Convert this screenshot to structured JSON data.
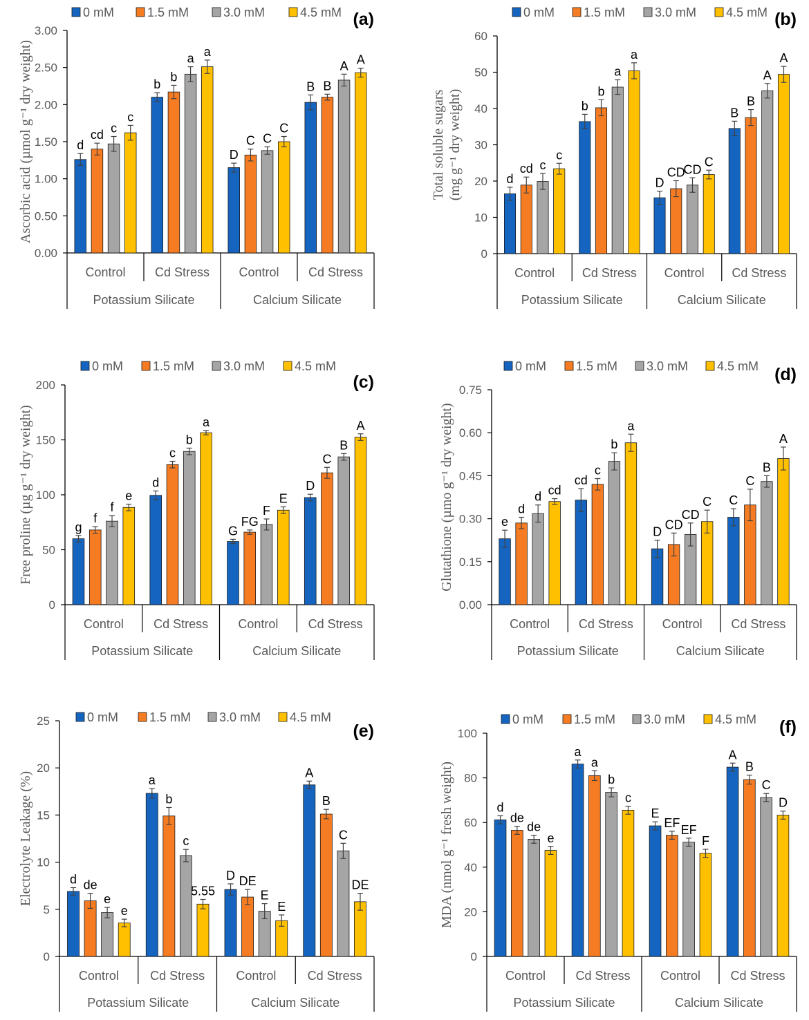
{
  "chart_data": [
    {
      "type": "bar",
      "panel_label": "(a)",
      "ylabel_lines": [
        "Ascorbic acid (µmol g⁻¹ dry weight)"
      ],
      "ylim": [
        0,
        3.0
      ],
      "ticks": [
        "0.00",
        "0.50",
        "1.00",
        "1.50",
        "2.00",
        "2.50",
        "3.00"
      ],
      "tick_values": [
        0,
        0.5,
        1,
        1.5,
        2,
        2.5,
        3
      ],
      "categories": [
        "Control",
        "Cd Stress",
        "Control",
        "Cd Stress"
      ],
      "groups": [
        "Potassium Silicate",
        "Calcium Silicate"
      ],
      "series": [
        {
          "name": "0 mM",
          "values": [
            1.26,
            2.1,
            1.15,
            2.03
          ],
          "errors": [
            0.08,
            0.06,
            0.06,
            0.1
          ],
          "letters": [
            "d",
            "b",
            "D",
            "B"
          ]
        },
        {
          "name": "1.5 mM",
          "values": [
            1.4,
            2.17,
            1.32,
            2.1
          ],
          "errors": [
            0.08,
            0.09,
            0.08,
            0.04
          ],
          "letters": [
            "cd",
            "b",
            "C",
            "B"
          ]
        },
        {
          "name": "3.0 mM",
          "values": [
            1.47,
            2.41,
            1.38,
            2.33
          ],
          "errors": [
            0.1,
            0.1,
            0.05,
            0.08
          ],
          "letters": [
            "c",
            "a",
            "C",
            "A"
          ]
        },
        {
          "name": "4.5 mM",
          "values": [
            1.62,
            2.51,
            1.5,
            2.43
          ],
          "errors": [
            0.1,
            0.09,
            0.07,
            0.06
          ],
          "letters": [
            "c",
            "a",
            "C",
            "A"
          ]
        }
      ],
      "colors": [
        "#1565C0",
        "#F57C22",
        "#A5A5A5",
        "#FFC000"
      ]
    },
    {
      "type": "bar",
      "panel_label": "(b)",
      "ylabel_lines": [
        "Total soluble sugars",
        "(mg g⁻¹ dry weight)"
      ],
      "ylim": [
        0,
        60
      ],
      "ticks": [
        "0",
        "10",
        "20",
        "30",
        "40",
        "50",
        "60"
      ],
      "tick_values": [
        0,
        10,
        20,
        30,
        40,
        50,
        60
      ],
      "categories": [
        "Control",
        "Cd Stress",
        "Control",
        "Cd Stress"
      ],
      "groups": [
        "Potassium Silicate",
        "Calcium Silicate"
      ],
      "series": [
        {
          "name": "0 mM",
          "values": [
            16.5,
            36.4,
            15.4,
            34.5
          ],
          "errors": [
            1.8,
            2.0,
            1.8,
            2.0
          ],
          "letters": [
            "d",
            "b",
            "D",
            "B"
          ]
        },
        {
          "name": "1.5 mM",
          "values": [
            18.9,
            40.2,
            17.9,
            37.5
          ],
          "errors": [
            2.2,
            2.2,
            2.2,
            2.2
          ],
          "letters": [
            "cd",
            "b",
            "CD",
            "B"
          ]
        },
        {
          "name": "3.0 mM",
          "values": [
            19.9,
            45.9,
            18.9,
            44.9
          ],
          "errors": [
            2.2,
            2.0,
            2.0,
            2.0
          ],
          "letters": [
            "c",
            "a",
            "CD",
            "A"
          ]
        },
        {
          "name": "4.5 mM",
          "values": [
            23.4,
            50.4,
            21.8,
            49.4
          ],
          "errors": [
            1.5,
            2.2,
            1.2,
            2.2
          ],
          "letters": [
            "c",
            "a",
            "C",
            "A"
          ]
        }
      ],
      "colors": [
        "#1565C0",
        "#F57C22",
        "#A5A5A5",
        "#FFC000"
      ]
    },
    {
      "type": "bar",
      "panel_label": "(c)",
      "ylabel_lines": [
        "Free proline (µg g⁻¹ dry weight)"
      ],
      "ylim": [
        0,
        200
      ],
      "ticks": [
        "0",
        "50",
        "100",
        "150",
        "200"
      ],
      "tick_values": [
        0,
        50,
        100,
        150,
        200
      ],
      "categories": [
        "Control",
        "Cd Stress",
        "Control",
        "Cd Stress"
      ],
      "groups": [
        "Potassium Silicate",
        "Calcium Silicate"
      ],
      "series": [
        {
          "name": "0 mM",
          "values": [
            60,
            99.5,
            57.5,
            97.5
          ],
          "errors": [
            3,
            4,
            2,
            3
          ],
          "letters": [
            "g",
            "d",
            "G",
            "D"
          ]
        },
        {
          "name": "1.5 mM",
          "values": [
            68,
            127.5,
            66,
            120
          ],
          "errors": [
            3,
            3,
            2,
            5
          ],
          "letters": [
            "f",
            "c",
            "FG",
            "C"
          ]
        },
        {
          "name": "3.0 mM",
          "values": [
            76,
            139.5,
            73,
            134.5
          ],
          "errors": [
            5,
            3,
            5,
            3
          ],
          "letters": [
            "f",
            "b",
            "F",
            "B"
          ]
        },
        {
          "name": "4.5 mM",
          "values": [
            88.5,
            156.5,
            86,
            152.5
          ],
          "errors": [
            3,
            2,
            3,
            3
          ],
          "letters": [
            "e",
            "a",
            "E",
            "A"
          ]
        }
      ],
      "colors": [
        "#1565C0",
        "#F57C22",
        "#A5A5A5",
        "#FFC000"
      ]
    },
    {
      "type": "bar",
      "panel_label": "(d)",
      "ylabel_lines": [
        "Glutathione (µmo g⁻¹ dry weight)"
      ],
      "ylim": [
        0,
        0.75
      ],
      "ticks": [
        "0.00",
        "0.15",
        "0.30",
        "0.45",
        "0.60",
        "0.75"
      ],
      "tick_values": [
        0,
        0.15,
        0.3,
        0.45,
        0.6,
        0.75
      ],
      "categories": [
        "Control",
        "Cd Stress",
        "Control",
        "Cd Stress"
      ],
      "groups": [
        "Potassium Silicate",
        "Calcium Silicate"
      ],
      "series": [
        {
          "name": "0 mM",
          "values": [
            0.23,
            0.365,
            0.195,
            0.305
          ],
          "errors": [
            0.03,
            0.04,
            0.03,
            0.03
          ],
          "letters": [
            "e",
            "cd",
            "D",
            "C"
          ]
        },
        {
          "name": "1.5 mM",
          "values": [
            0.285,
            0.42,
            0.21,
            0.348
          ],
          "errors": [
            0.02,
            0.02,
            0.04,
            0.055
          ],
          "letters": [
            "d",
            "c",
            "CD",
            "C"
          ]
        },
        {
          "name": "3.0 mM",
          "values": [
            0.318,
            0.5,
            0.245,
            0.43
          ],
          "errors": [
            0.03,
            0.03,
            0.04,
            0.02
          ],
          "letters": [
            "d",
            "b",
            "CD",
            "B"
          ]
        },
        {
          "name": "4.5 mM",
          "values": [
            0.36,
            0.565,
            0.29,
            0.51
          ],
          "errors": [
            0.01,
            0.03,
            0.04,
            0.04
          ],
          "letters": [
            "cd",
            "a",
            "C",
            "A"
          ]
        }
      ],
      "colors": [
        "#1565C0",
        "#F57C22",
        "#A5A5A5",
        "#FFC000"
      ]
    },
    {
      "type": "bar",
      "panel_label": "(e)",
      "ylabel_lines": [
        "Electrolyte Leakage (%)"
      ],
      "ylim": [
        0,
        25
      ],
      "ticks": [
        "0",
        "5",
        "10",
        "15",
        "20",
        "25"
      ],
      "tick_values": [
        0,
        5,
        10,
        15,
        20,
        25
      ],
      "categories": [
        "Control",
        "Cd Stress",
        "Control",
        "Cd Stress"
      ],
      "groups": [
        "Potassium Silicate",
        "Calcium Silicate"
      ],
      "series": [
        {
          "name": "0 mM",
          "values": [
            6.9,
            17.3,
            7.1,
            18.2
          ],
          "errors": [
            0.4,
            0.5,
            0.6,
            0.4
          ],
          "letters": [
            "d",
            "a",
            "D",
            "A"
          ]
        },
        {
          "name": "1.5 mM",
          "values": [
            5.9,
            14.9,
            6.3,
            15.1
          ],
          "errors": [
            0.8,
            0.9,
            0.8,
            0.5
          ],
          "letters": [
            "de",
            "b",
            "DE",
            "B"
          ]
        },
        {
          "name": "3.0 mM",
          "values": [
            4.65,
            10.7,
            4.8,
            11.2
          ],
          "errors": [
            0.55,
            0.65,
            0.8,
            0.8
          ],
          "letters": [
            "e",
            "c",
            "E",
            "C"
          ]
        },
        {
          "name": "4.5 mM",
          "values": [
            3.55,
            5.55,
            3.8,
            5.8
          ],
          "errors": [
            0.4,
            0.5,
            0.6,
            0.9
          ],
          "letters": [
            "e",
            "5.55",
            "E",
            "DE"
          ]
        }
      ],
      "colors": [
        "#1565C0",
        "#F57C22",
        "#A5A5A5",
        "#FFC000"
      ]
    },
    {
      "type": "bar",
      "panel_label": "(f)",
      "ylabel_lines": [
        "MDA (nmol g⁻¹ fresh weight)"
      ],
      "ylim": [
        0,
        100
      ],
      "ticks": [
        "0",
        "20",
        "40",
        "60",
        "80",
        "100"
      ],
      "tick_values": [
        0,
        20,
        40,
        60,
        80,
        100
      ],
      "categories": [
        "Control",
        "Cd Stress",
        "Control",
        "Cd Stress"
      ],
      "groups": [
        "Potassium Silicate",
        "Calcium Silicate"
      ],
      "series": [
        {
          "name": "0 mM",
          "values": [
            61.2,
            86.2,
            58.5,
            84.8
          ],
          "errors": [
            1.8,
            1.8,
            1.8,
            1.8
          ],
          "letters": [
            "d",
            "a",
            "E",
            "A"
          ]
        },
        {
          "name": "1.5 mM",
          "values": [
            56.5,
            81,
            54.3,
            79.2
          ],
          "errors": [
            1.8,
            2.2,
            1.8,
            2.0
          ],
          "letters": [
            "de",
            "a",
            "EF",
            "B"
          ]
        },
        {
          "name": "3.0 mM",
          "values": [
            52.5,
            73.5,
            51.2,
            71.2
          ],
          "errors": [
            1.8,
            2.0,
            1.8,
            1.8
          ],
          "letters": [
            "de",
            "b",
            "EF",
            "C"
          ]
        },
        {
          "name": "4.5 mM",
          "values": [
            47.5,
            65.5,
            46.2,
            63.3
          ],
          "errors": [
            1.8,
            1.8,
            1.8,
            1.8
          ],
          "letters": [
            "e",
            "c",
            "F",
            "D"
          ]
        }
      ],
      "colors": [
        "#1565C0",
        "#F57C22",
        "#A5A5A5",
        "#FFC000"
      ]
    }
  ]
}
